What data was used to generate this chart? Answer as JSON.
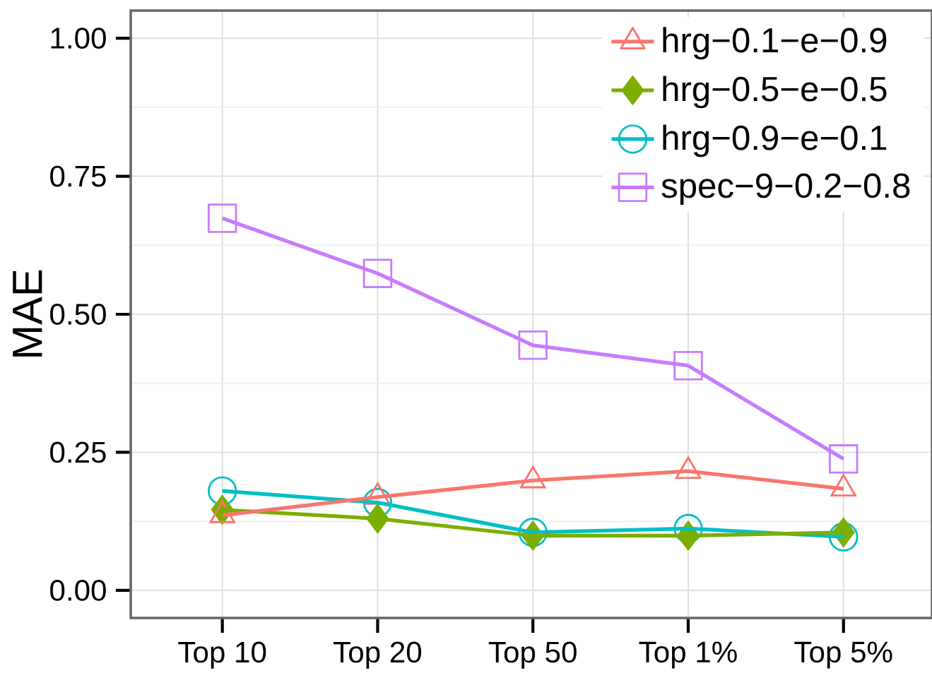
{
  "chart_data": {
    "type": "line",
    "ylabel": "MAE",
    "categories": [
      "Top 10",
      "Top 20",
      "Top 50",
      "Top 1%",
      "Top 5%"
    ],
    "series": [
      {
        "name": "hrg−0.1−e−0.9",
        "color": "#F8766D",
        "marker": "triangle",
        "values": [
          0.136,
          0.169,
          0.199,
          0.216,
          0.184
        ]
      },
      {
        "name": "hrg−0.5−e−0.5",
        "color": "#7CAE00",
        "marker": "diamond",
        "values": [
          0.146,
          0.13,
          0.099,
          0.099,
          0.105
        ]
      },
      {
        "name": "hrg−0.9−e−0.1",
        "color": "#00BFC4",
        "marker": "circle",
        "values": [
          0.18,
          0.159,
          0.105,
          0.112,
          0.097
        ]
      },
      {
        "name": "spec−9−0.2−0.8",
        "color": "#C77CFF",
        "marker": "square",
        "values": [
          0.674,
          0.574,
          0.444,
          0.407,
          0.238
        ]
      }
    ],
    "ylim": [
      -0.05,
      1.05
    ],
    "yticks": [
      {
        "value": 0,
        "label": "0.00"
      },
      {
        "value": 0.25,
        "label": "0.25"
      },
      {
        "value": 0.5,
        "label": "0.50"
      },
      {
        "value": 0.75,
        "label": "0.75"
      },
      {
        "value": 1,
        "label": "1.00"
      }
    ],
    "grid": true,
    "legend": "top right",
    "line_style": "solid"
  }
}
